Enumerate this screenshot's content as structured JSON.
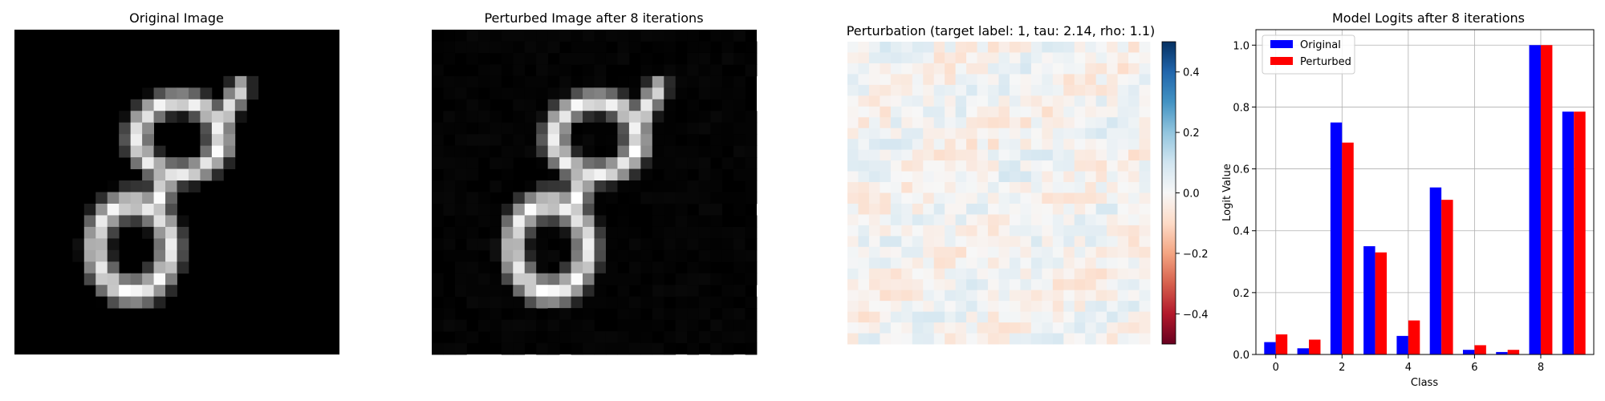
{
  "panels": {
    "original": {
      "title": "Original Image"
    },
    "perturbed": {
      "title": "Perturbed Image after 8 iterations"
    },
    "perturbation": {
      "title": "Perturbation (target label: 1, tau: 2.14, rho: 1.1)",
      "colorbar": {
        "ticks": [
          "0.4",
          "0.2",
          "0.0",
          "−0.2",
          "−0.4"
        ],
        "values": [
          0.4,
          0.2,
          0.0,
          -0.2,
          -0.4
        ],
        "range": [
          -0.5,
          0.5
        ],
        "colormap": "RdBu"
      }
    }
  },
  "chart_data": {
    "type": "bar",
    "title": "Model Logits after 8 iterations",
    "xlabel": "Class",
    "ylabel": "Logit Value",
    "categories": [
      0,
      1,
      2,
      3,
      4,
      5,
      6,
      7,
      8,
      9
    ],
    "xticks": [
      "0",
      "2",
      "4",
      "6",
      "8"
    ],
    "xtick_values": [
      0,
      2,
      4,
      6,
      8
    ],
    "yticks": [
      "0.0",
      "0.2",
      "0.4",
      "0.6",
      "0.8",
      "1.0"
    ],
    "ytick_values": [
      0.0,
      0.2,
      0.4,
      0.6,
      0.8,
      1.0
    ],
    "ylim": [
      0,
      1.05
    ],
    "xlim": [
      -0.6,
      9.6
    ],
    "grid": true,
    "legend_position": "upper-left",
    "series": [
      {
        "name": "Original",
        "color": "#0000ff",
        "values": [
          0.04,
          0.02,
          0.75,
          0.35,
          0.06,
          0.54,
          0.015,
          0.008,
          1.0,
          0.785
        ]
      },
      {
        "name": "Perturbed",
        "color": "#ff0000",
        "values": [
          0.065,
          0.048,
          0.685,
          0.33,
          0.11,
          0.5,
          0.03,
          0.015,
          1.0,
          0.785
        ]
      }
    ]
  }
}
